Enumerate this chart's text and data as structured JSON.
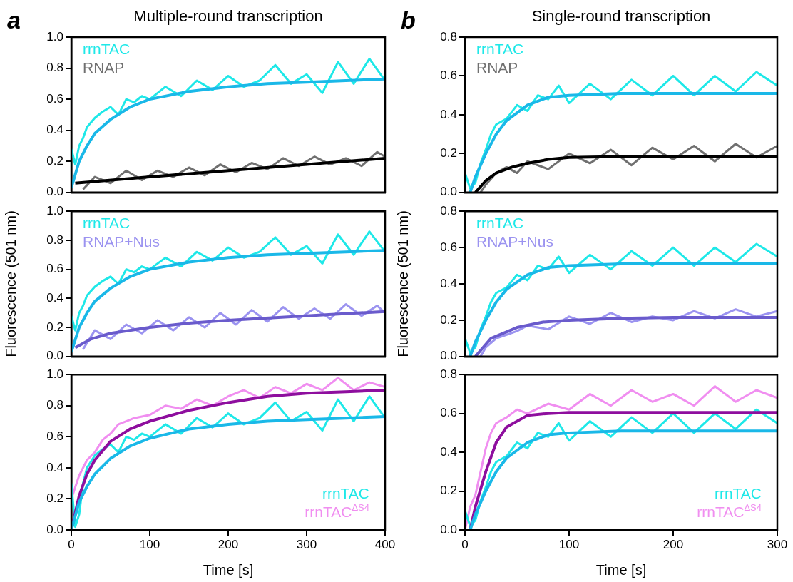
{
  "chart_data": [
    {
      "type": "line",
      "title": "Multiple-round transcription",
      "annotations": [
        "a"
      ],
      "legend": "top left",
      "marker": "none",
      "grid": false,
      "tick_labels": "y",
      "xlim": [
        0,
        400
      ],
      "ylim": [
        0,
        1
      ],
      "yticks": [
        {
          "value": 0,
          "label": "0.0"
        },
        {
          "value": 0.2,
          "label": "0.2"
        },
        {
          "value": 0.4,
          "label": "0.4"
        },
        {
          "value": 0.6,
          "label": "0.6"
        },
        {
          "value": 0.8,
          "label": "0.8"
        },
        {
          "value": 1,
          "label": "1.0"
        }
      ],
      "series": [
        {
          "color": "#1ab8e8",
          "x": [
            0,
            10,
            20,
            30,
            50,
            75,
            100,
            150,
            200,
            250,
            300,
            350,
            400
          ],
          "values": [
            0.03,
            0.2,
            0.3,
            0.38,
            0.47,
            0.55,
            0.6,
            0.65,
            0.68,
            0.7,
            0.71,
            0.72,
            0.73
          ]
        },
        {
          "color": "#000000",
          "x": [
            5,
            100,
            200,
            300,
            400
          ],
          "values": [
            0.06,
            0.1,
            0.14,
            0.18,
            0.22
          ]
        },
        {
          "name": "rrnTAC",
          "color": "#1ee8e8",
          "x": [
            0,
            5,
            10,
            15,
            20,
            30,
            40,
            50,
            60,
            70,
            80,
            90,
            100,
            120,
            140,
            160,
            180,
            200,
            220,
            240,
            260,
            280,
            300,
            320,
            340,
            360,
            380,
            400
          ],
          "values": [
            0.28,
            0.18,
            0.3,
            0.35,
            0.42,
            0.48,
            0.52,
            0.55,
            0.5,
            0.6,
            0.58,
            0.62,
            0.6,
            0.68,
            0.62,
            0.72,
            0.66,
            0.75,
            0.68,
            0.72,
            0.82,
            0.7,
            0.76,
            0.64,
            0.84,
            0.7,
            0.86,
            0.72
          ]
        },
        {
          "name": "RNAP",
          "color": "#707070",
          "x": [
            15,
            30,
            50,
            70,
            90,
            110,
            130,
            150,
            170,
            190,
            210,
            230,
            250,
            270,
            290,
            310,
            330,
            350,
            370,
            390,
            400
          ],
          "values": [
            0.02,
            0.1,
            0.06,
            0.14,
            0.08,
            0.14,
            0.1,
            0.16,
            0.11,
            0.18,
            0.13,
            0.19,
            0.15,
            0.22,
            0.17,
            0.23,
            0.18,
            0.22,
            0.17,
            0.26,
            0.23
          ]
        }
      ]
    },
    {
      "type": "line",
      "title": "Single-round transcription",
      "annotations": [
        "b"
      ],
      "legend": "top left",
      "marker": "none",
      "grid": false,
      "tick_labels": "y",
      "xlim": [
        0,
        300
      ],
      "ylim": [
        0,
        0.8
      ],
      "yticks": [
        {
          "value": 0,
          "label": "0.0"
        },
        {
          "value": 0.2,
          "label": "0.2"
        },
        {
          "value": 0.4,
          "label": "0.4"
        },
        {
          "value": 0.6,
          "label": "0.6"
        },
        {
          "value": 0.8,
          "label": "0.8"
        }
      ],
      "series": [
        {
          "color": "#1ab8e8",
          "x": [
            5,
            10,
            20,
            30,
            40,
            60,
            80,
            100,
            150,
            200,
            300
          ],
          "values": [
            0,
            0.08,
            0.2,
            0.3,
            0.37,
            0.45,
            0.49,
            0.5,
            0.51,
            0.51,
            0.51
          ]
        },
        {
          "color": "#000000",
          "x": [
            10,
            20,
            30,
            45,
            60,
            80,
            100,
            150,
            200,
            300
          ],
          "values": [
            0,
            0.06,
            0.1,
            0.13,
            0.15,
            0.17,
            0.18,
            0.185,
            0.185,
            0.185
          ]
        },
        {
          "name": "rrnTAC",
          "color": "#1ee8e8",
          "x": [
            0,
            5,
            10,
            15,
            20,
            25,
            30,
            40,
            50,
            60,
            70,
            80,
            90,
            100,
            120,
            140,
            160,
            180,
            200,
            220,
            240,
            260,
            280,
            300
          ],
          "values": [
            0.1,
            0.02,
            0.05,
            0.15,
            0.22,
            0.3,
            0.35,
            0.38,
            0.45,
            0.42,
            0.5,
            0.48,
            0.55,
            0.46,
            0.56,
            0.48,
            0.58,
            0.5,
            0.6,
            0.5,
            0.6,
            0.52,
            0.62,
            0.55
          ]
        },
        {
          "name": "RNAP",
          "color": "#707070",
          "x": [
            15,
            20,
            30,
            40,
            50,
            60,
            80,
            100,
            120,
            140,
            160,
            180,
            200,
            220,
            240,
            260,
            280,
            300
          ],
          "values": [
            0.0,
            0.04,
            0.1,
            0.13,
            0.1,
            0.16,
            0.12,
            0.2,
            0.15,
            0.22,
            0.14,
            0.23,
            0.17,
            0.24,
            0.16,
            0.25,
            0.18,
            0.24
          ]
        }
      ]
    },
    {
      "type": "line",
      "ylabel": "Fluorescence (501 nm)",
      "legend": "top left",
      "marker": "none",
      "grid": false,
      "tick_labels": "y",
      "xlim": [
        0,
        400
      ],
      "ylim": [
        0,
        1
      ],
      "yticks": [
        {
          "value": 0,
          "label": "0.0"
        },
        {
          "value": 0.2,
          "label": "0.2"
        },
        {
          "value": 0.4,
          "label": "0.4"
        },
        {
          "value": 0.6,
          "label": "0.6"
        },
        {
          "value": 0.8,
          "label": "0.8"
        },
        {
          "value": 1,
          "label": "1.0"
        }
      ],
      "series": [
        {
          "color": "#1ab8e8",
          "x": [
            0,
            10,
            20,
            30,
            50,
            75,
            100,
            150,
            200,
            250,
            300,
            350,
            400
          ],
          "values": [
            0.03,
            0.2,
            0.3,
            0.38,
            0.47,
            0.55,
            0.6,
            0.65,
            0.68,
            0.7,
            0.71,
            0.72,
            0.73
          ]
        },
        {
          "color": "#6a5bcc",
          "x": [
            5,
            25,
            50,
            100,
            150,
            200,
            300,
            400
          ],
          "values": [
            0.06,
            0.12,
            0.16,
            0.2,
            0.23,
            0.25,
            0.28,
            0.31
          ]
        },
        {
          "name": "rrnTAC",
          "color": "#1ee8e8",
          "x": [
            0,
            5,
            10,
            15,
            20,
            30,
            40,
            50,
            60,
            70,
            80,
            90,
            100,
            120,
            140,
            160,
            180,
            200,
            220,
            240,
            260,
            280,
            300,
            320,
            340,
            360,
            380,
            400
          ],
          "values": [
            0.28,
            0.18,
            0.3,
            0.35,
            0.42,
            0.48,
            0.52,
            0.55,
            0.5,
            0.6,
            0.58,
            0.62,
            0.6,
            0.68,
            0.62,
            0.72,
            0.66,
            0.75,
            0.68,
            0.72,
            0.82,
            0.7,
            0.76,
            0.64,
            0.84,
            0.7,
            0.86,
            0.72
          ]
        },
        {
          "name": "RNAP+Nus",
          "color": "#9b93f0",
          "x": [
            15,
            30,
            50,
            70,
            90,
            110,
            130,
            150,
            170,
            190,
            210,
            230,
            250,
            270,
            290,
            310,
            330,
            350,
            370,
            390,
            400
          ],
          "values": [
            0.05,
            0.18,
            0.12,
            0.22,
            0.16,
            0.25,
            0.18,
            0.27,
            0.2,
            0.3,
            0.22,
            0.32,
            0.24,
            0.34,
            0.26,
            0.33,
            0.26,
            0.36,
            0.28,
            0.35,
            0.3
          ]
        }
      ]
    },
    {
      "type": "line",
      "ylabel": "Fluorescence (501 nm)",
      "legend": "top left",
      "marker": "none",
      "grid": false,
      "tick_labels": "y",
      "xlim": [
        0,
        300
      ],
      "ylim": [
        0,
        0.8
      ],
      "yticks": [
        {
          "value": 0,
          "label": "0.0"
        },
        {
          "value": 0.2,
          "label": "0.2"
        },
        {
          "value": 0.4,
          "label": "0.4"
        },
        {
          "value": 0.6,
          "label": "0.6"
        },
        {
          "value": 0.8,
          "label": "0.8"
        }
      ],
      "series": [
        {
          "color": "#1ab8e8",
          "x": [
            5,
            10,
            20,
            30,
            40,
            60,
            80,
            100,
            150,
            200,
            300
          ],
          "values": [
            0,
            0.08,
            0.2,
            0.3,
            0.37,
            0.45,
            0.49,
            0.5,
            0.51,
            0.51,
            0.51
          ]
        },
        {
          "color": "#6a5bcc",
          "x": [
            10,
            25,
            50,
            75,
            100,
            150,
            200,
            300
          ],
          "values": [
            0,
            0.1,
            0.16,
            0.19,
            0.2,
            0.21,
            0.215,
            0.215
          ]
        },
        {
          "name": "rrnTAC",
          "color": "#1ee8e8",
          "x": [
            0,
            5,
            10,
            15,
            20,
            25,
            30,
            40,
            50,
            60,
            70,
            80,
            90,
            100,
            120,
            140,
            160,
            180,
            200,
            220,
            240,
            260,
            280,
            300
          ],
          "values": [
            0.1,
            0.02,
            0.05,
            0.15,
            0.22,
            0.3,
            0.35,
            0.38,
            0.45,
            0.42,
            0.5,
            0.48,
            0.55,
            0.46,
            0.56,
            0.48,
            0.58,
            0.5,
            0.6,
            0.5,
            0.6,
            0.52,
            0.62,
            0.55
          ]
        },
        {
          "name": "RNAP+Nus",
          "color": "#9b93f0",
          "x": [
            15,
            20,
            30,
            40,
            50,
            60,
            80,
            100,
            120,
            140,
            160,
            180,
            200,
            220,
            240,
            260,
            280,
            300
          ],
          "values": [
            0.0,
            0.05,
            0.1,
            0.12,
            0.14,
            0.17,
            0.15,
            0.22,
            0.18,
            0.24,
            0.19,
            0.22,
            0.2,
            0.25,
            0.21,
            0.26,
            0.22,
            0.25
          ]
        }
      ]
    },
    {
      "type": "line",
      "xlabel": "Time [s]",
      "legend": "bottom right",
      "marker": "none",
      "grid": false,
      "xlim": [
        0,
        400
      ],
      "xticks": [
        0,
        100,
        200,
        300,
        400
      ],
      "ylim": [
        0,
        1
      ],
      "yticks": [
        {
          "value": 0,
          "label": "0.0"
        },
        {
          "value": 0.2,
          "label": "0.2"
        },
        {
          "value": 0.4,
          "label": "0.4"
        },
        {
          "value": 0.6,
          "label": "0.6"
        },
        {
          "value": 0.8,
          "label": "0.8"
        },
        {
          "value": 1,
          "label": "1.0"
        }
      ],
      "series": [
        {
          "color": "#1ab8e8",
          "x": [
            0,
            10,
            20,
            30,
            50,
            75,
            100,
            150,
            200,
            250,
            300,
            350,
            400
          ],
          "values": [
            0,
            0.18,
            0.28,
            0.36,
            0.46,
            0.54,
            0.59,
            0.65,
            0.68,
            0.7,
            0.71,
            0.72,
            0.73
          ]
        },
        {
          "color": "#8e0e9e",
          "x": [
            0,
            10,
            20,
            30,
            50,
            75,
            100,
            150,
            200,
            250,
            300,
            350,
            400
          ],
          "values": [
            0,
            0.22,
            0.36,
            0.45,
            0.57,
            0.65,
            0.7,
            0.77,
            0.82,
            0.86,
            0.88,
            0.89,
            0.9
          ]
        },
        {
          "name": "rrnTAC",
          "color": "#1ee8e8",
          "x": [
            0,
            5,
            10,
            15,
            20,
            30,
            40,
            50,
            60,
            70,
            80,
            90,
            100,
            120,
            140,
            160,
            180,
            200,
            220,
            240,
            260,
            280,
            300,
            320,
            340,
            360,
            380,
            400
          ],
          "values": [
            0.3,
            0.02,
            0.1,
            0.3,
            0.4,
            0.48,
            0.52,
            0.55,
            0.5,
            0.6,
            0.58,
            0.62,
            0.6,
            0.68,
            0.62,
            0.72,
            0.66,
            0.75,
            0.68,
            0.72,
            0.82,
            0.7,
            0.76,
            0.64,
            0.84,
            0.7,
            0.86,
            0.72
          ]
        },
        {
          "name": "rrnTAC$^{ΔS4}$",
          "color": "#f08ef0",
          "x": [
            0,
            10,
            20,
            30,
            40,
            50,
            60,
            70,
            80,
            100,
            120,
            140,
            160,
            180,
            200,
            220,
            240,
            260,
            280,
            300,
            320,
            340,
            360,
            380,
            400
          ],
          "values": [
            0.2,
            0.35,
            0.45,
            0.5,
            0.58,
            0.62,
            0.68,
            0.7,
            0.72,
            0.74,
            0.8,
            0.78,
            0.84,
            0.8,
            0.86,
            0.9,
            0.85,
            0.92,
            0.88,
            0.94,
            0.9,
            0.98,
            0.9,
            0.95,
            0.92
          ]
        }
      ]
    },
    {
      "type": "line",
      "xlabel": "Time [s]",
      "legend": "bottom right",
      "marker": "none",
      "grid": false,
      "xlim": [
        0,
        300
      ],
      "xticks": [
        0,
        100,
        200,
        300
      ],
      "ylim": [
        0,
        0.8
      ],
      "yticks": [
        {
          "value": 0,
          "label": "0.0"
        },
        {
          "value": 0.2,
          "label": "0.2"
        },
        {
          "value": 0.4,
          "label": "0.4"
        },
        {
          "value": 0.6,
          "label": "0.6"
        },
        {
          "value": 0.8,
          "label": "0.8"
        }
      ],
      "series": [
        {
          "color": "#1ab8e8",
          "x": [
            5,
            10,
            20,
            30,
            40,
            60,
            80,
            100,
            150,
            200,
            300
          ],
          "values": [
            0,
            0.08,
            0.2,
            0.3,
            0.37,
            0.45,
            0.49,
            0.5,
            0.51,
            0.51,
            0.51
          ]
        },
        {
          "color": "#8e0e9e",
          "x": [
            5,
            10,
            20,
            30,
            40,
            60,
            80,
            100,
            150,
            200,
            300
          ],
          "values": [
            0,
            0.12,
            0.3,
            0.45,
            0.53,
            0.59,
            0.6,
            0.605,
            0.605,
            0.605,
            0.605
          ]
        },
        {
          "name": "rrnTAC",
          "color": "#1ee8e8",
          "x": [
            0,
            5,
            10,
            15,
            20,
            25,
            30,
            40,
            50,
            60,
            70,
            80,
            90,
            100,
            120,
            140,
            160,
            180,
            200,
            220,
            240,
            260,
            280,
            300
          ],
          "values": [
            0.1,
            0.02,
            0.05,
            0.15,
            0.22,
            0.3,
            0.35,
            0.38,
            0.45,
            0.42,
            0.5,
            0.48,
            0.55,
            0.46,
            0.56,
            0.48,
            0.58,
            0.5,
            0.6,
            0.5,
            0.6,
            0.52,
            0.62,
            0.55
          ]
        },
        {
          "name": "rrnTAC$^{ΔS4}$",
          "color": "#f08ef0",
          "x": [
            0,
            5,
            10,
            15,
            20,
            25,
            30,
            40,
            50,
            60,
            80,
            100,
            120,
            140,
            160,
            180,
            200,
            220,
            240,
            260,
            280,
            300
          ],
          "values": [
            0.0,
            0.12,
            0.18,
            0.3,
            0.42,
            0.5,
            0.55,
            0.58,
            0.62,
            0.6,
            0.65,
            0.62,
            0.7,
            0.64,
            0.72,
            0.66,
            0.7,
            0.64,
            0.74,
            0.66,
            0.72,
            0.68
          ]
        }
      ]
    }
  ]
}
